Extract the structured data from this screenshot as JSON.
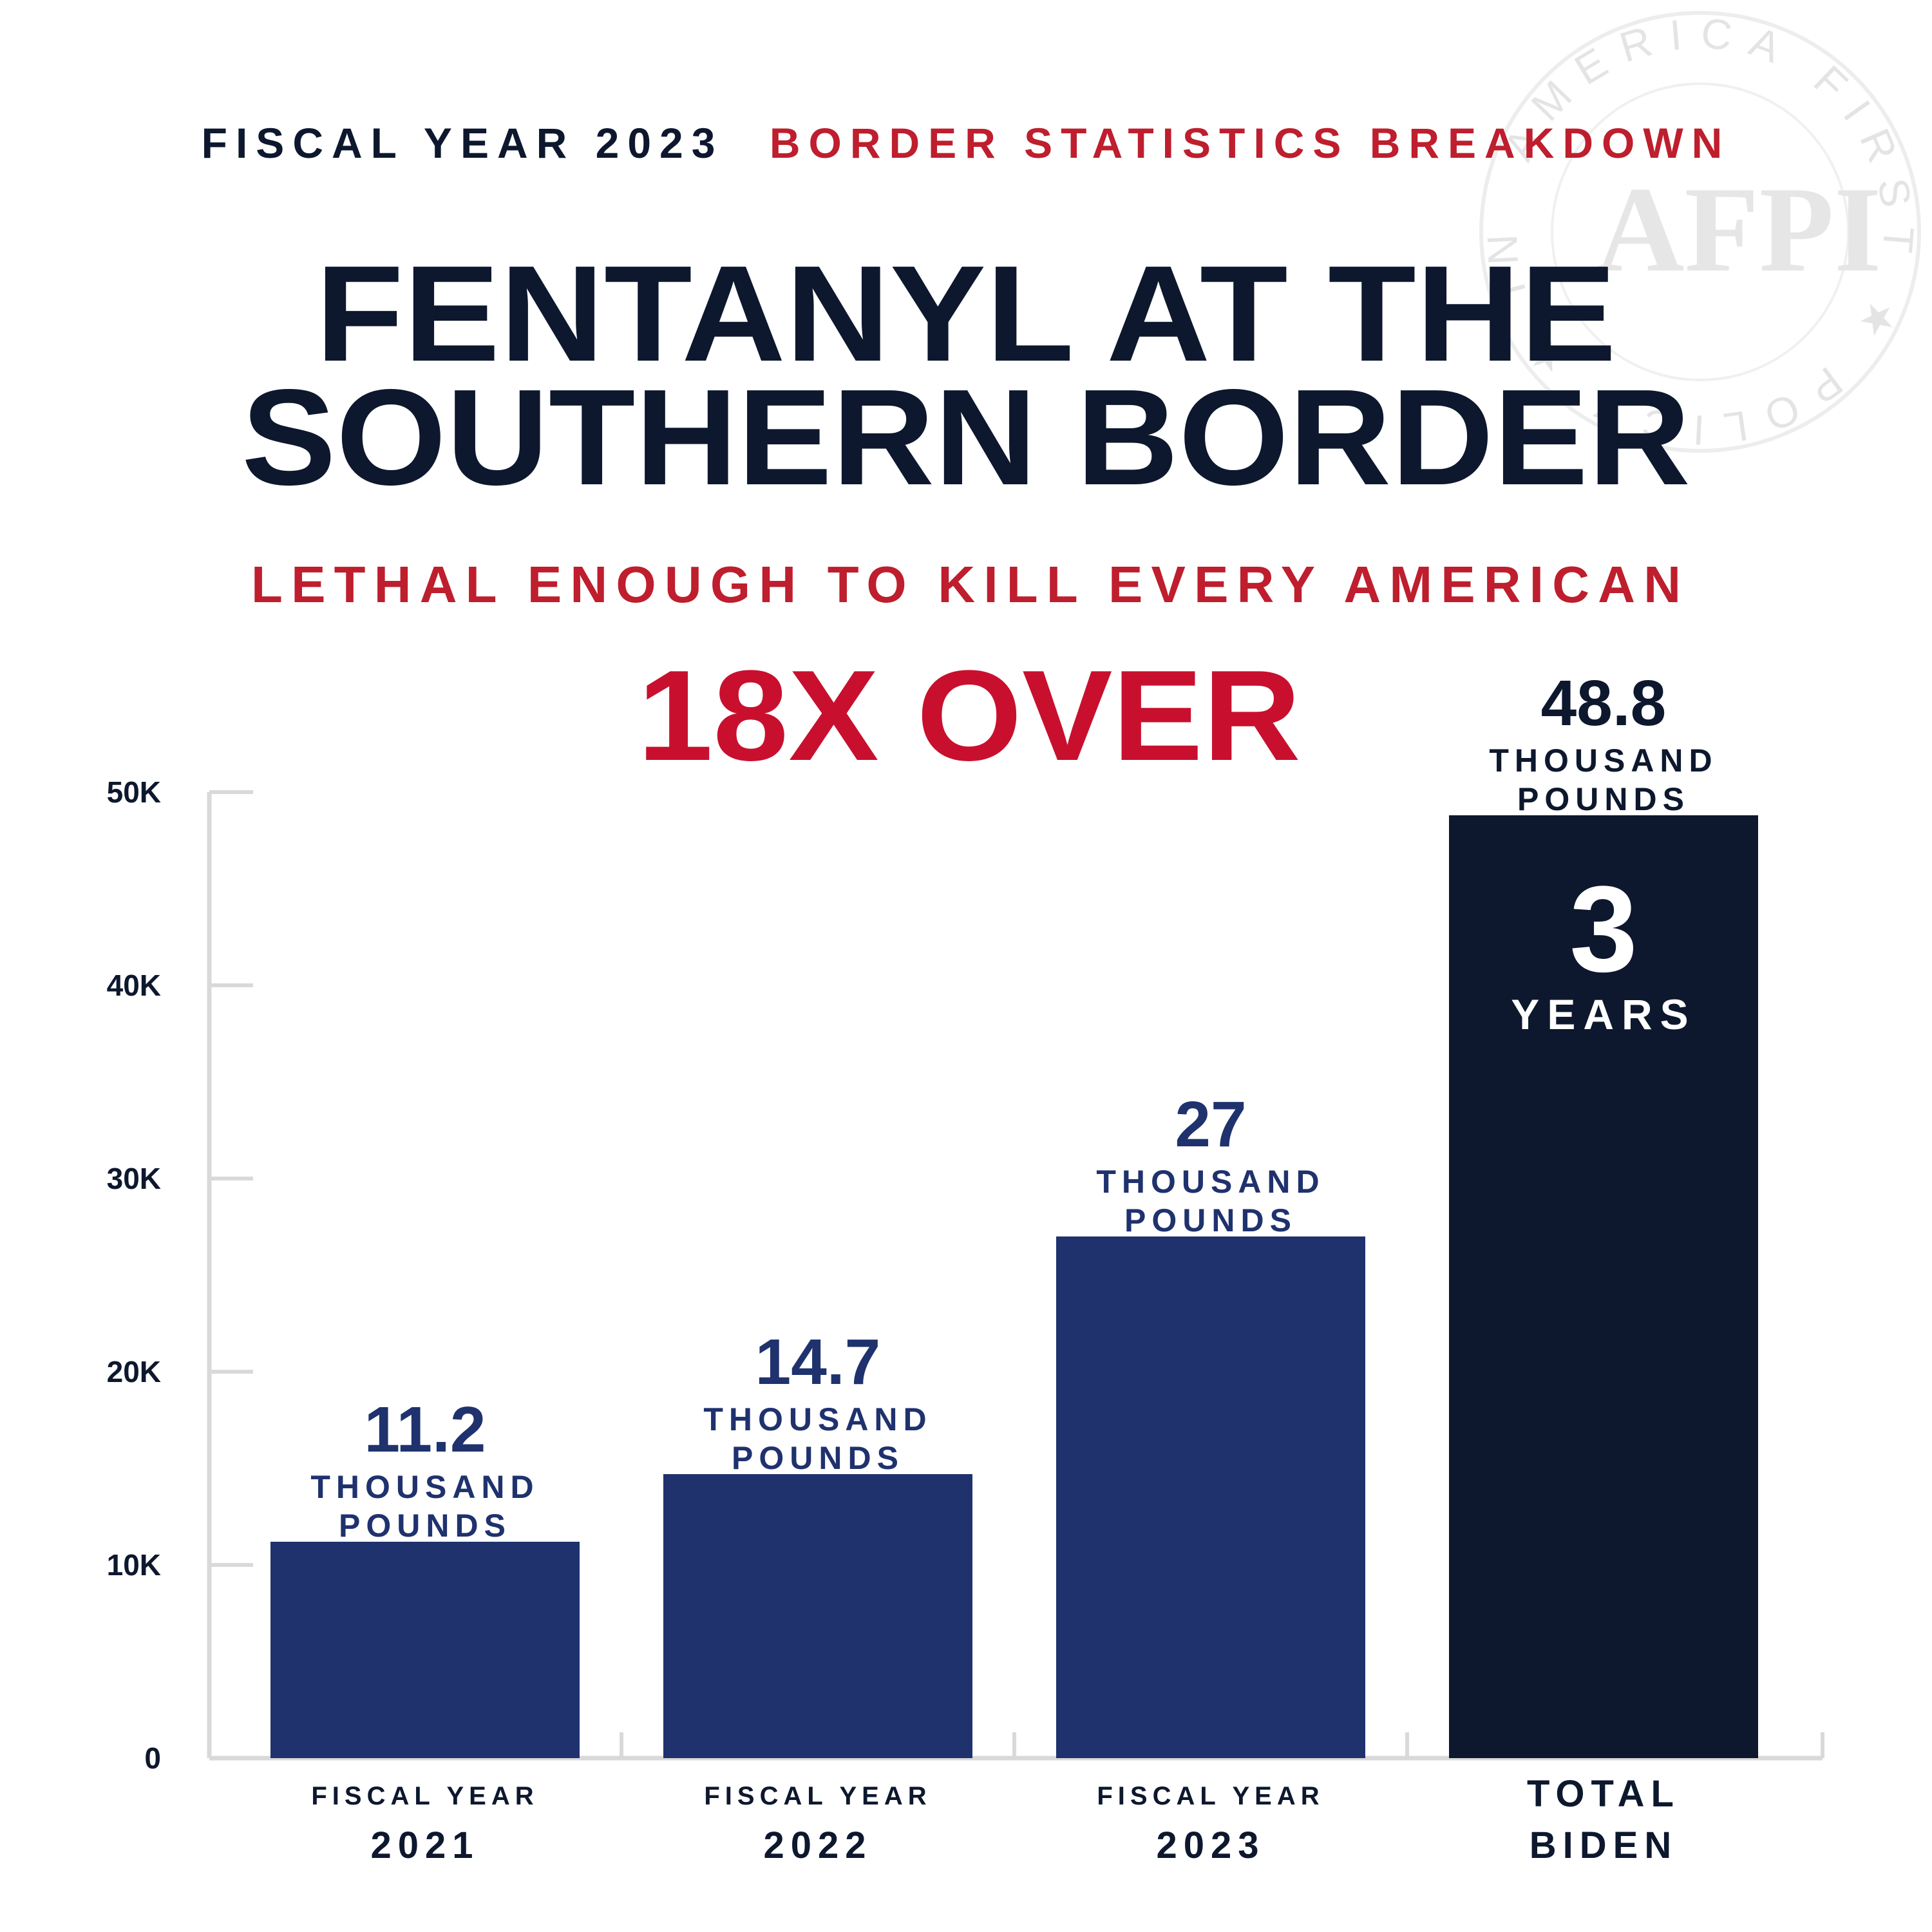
{
  "header": {
    "kicker_left": "FISCAL YEAR 2023",
    "kicker_right": "BORDER STATISTICS BREAKDOWN",
    "title_line1": "FENTANYL AT THE",
    "title_line2": "SOUTHERN BORDER",
    "subtitle": "LETHAL ENOUGH TO KILL EVERY AMERICAN",
    "highlight": "18X OVER"
  },
  "seal": {
    "ring_text": "AMERICA FIRST ★ POLICY ★ INSTITUTE ★",
    "center_text": "AFPI"
  },
  "colors": {
    "navy": "#1f326e",
    "dark_navy": "#0d182e",
    "red": "#be1e2d",
    "bright_red": "#c8102e",
    "axis": "#d9d9d9",
    "seal": "#e2e2e2"
  },
  "chart_data": {
    "type": "bar",
    "title": "FENTANYL AT THE SOUTHERN BORDER",
    "categories": [
      {
        "line1": "FISCAL YEAR",
        "line2": "2021"
      },
      {
        "line1": "FISCAL YEAR",
        "line2": "2022"
      },
      {
        "line1": "FISCAL YEAR",
        "line2": "2023"
      },
      {
        "line1": "TOTAL",
        "line2": "BIDEN"
      }
    ],
    "values": [
      11200,
      14700,
      27000,
      48800
    ],
    "value_labels": [
      {
        "number": "11.2",
        "line1": "THOUSAND",
        "line2": "POUNDS"
      },
      {
        "number": "14.7",
        "line1": "THOUSAND",
        "line2": "POUNDS"
      },
      {
        "number": "27",
        "line1": "THOUSAND",
        "line2": "POUNDS"
      },
      {
        "number": "48.8",
        "line1": "THOUSAND",
        "line2": "POUNDS"
      }
    ],
    "bar_colors": [
      "#1f326e",
      "#1f326e",
      "#1f326e",
      "#0d182e"
    ],
    "inner_label": {
      "bar_index": 3,
      "number": "3",
      "text": "YEARS"
    },
    "yticks": [
      0,
      10000,
      20000,
      30000,
      40000,
      50000
    ],
    "ytick_labels": [
      "0",
      "10K",
      "20K",
      "30K",
      "40K",
      "50K"
    ],
    "ylim": [
      0,
      50000
    ],
    "xlabel": "",
    "ylabel": "",
    "grid": false,
    "legend": "none"
  }
}
